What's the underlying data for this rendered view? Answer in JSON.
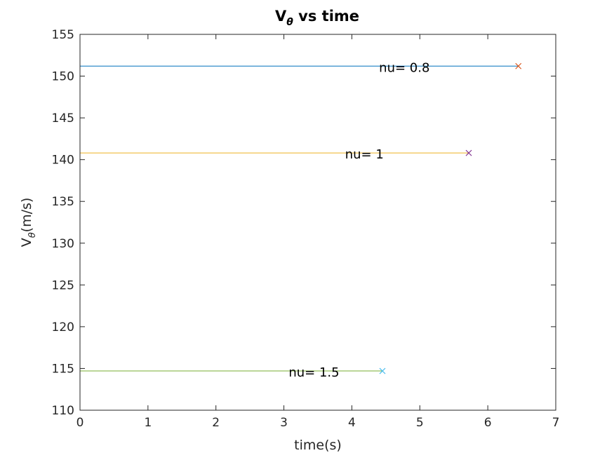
{
  "chart_data": {
    "type": "line",
    "title": {
      "main": "V",
      "sub": "θ",
      "rest": " vs time"
    },
    "xlabel": "time(s)",
    "ylabel": {
      "main": "V",
      "sub": "θ",
      "rest": "(m/s)"
    },
    "xlim": [
      0,
      7
    ],
    "ylim": [
      110,
      155
    ],
    "xticks": [
      0,
      1,
      2,
      3,
      4,
      5,
      6,
      7
    ],
    "yticks": [
      110,
      115,
      120,
      125,
      130,
      135,
      140,
      145,
      150,
      155
    ],
    "grid": false,
    "series": [
      {
        "label": "nu= 0.8",
        "label_at": {
          "x": 4.4,
          "y": 151.2
        },
        "x": [
          0,
          6.45
        ],
        "y": [
          151.2,
          151.2
        ],
        "line_color": "#0072BD",
        "marker_color": "#D95319",
        "marker": "x"
      },
      {
        "label": "nu= 1",
        "label_at": {
          "x": 3.9,
          "y": 140.8
        },
        "x": [
          0,
          5.72
        ],
        "y": [
          140.8,
          140.8
        ],
        "line_color": "#EDB120",
        "marker_color": "#7E2F8E",
        "marker": "x"
      },
      {
        "label": "nu= 1.5",
        "label_at": {
          "x": 3.07,
          "y": 114.7
        },
        "x": [
          0,
          4.45
        ],
        "y": [
          114.7,
          114.7
        ],
        "line_color": "#77AC30",
        "marker_color": "#4DBEEE",
        "marker": "x"
      }
    ]
  }
}
